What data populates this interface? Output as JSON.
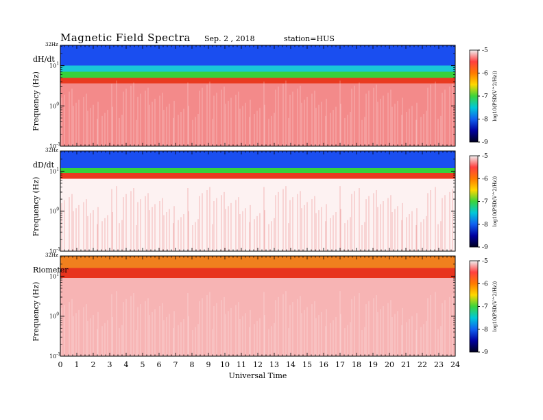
{
  "header": {
    "title": "Magnetic  Field  Spectra",
    "date": "Sep. 2  , 2018",
    "station": "station=HUS"
  },
  "chart_data": [
    {
      "type": "heatmap",
      "panel_label": "dH/dt",
      "ylabel": "Frequency  (Hz)",
      "yscale": "log",
      "ylim": [
        0.1,
        32
      ],
      "y_top_label": "32Hz",
      "yticks": [
        "10",
        "10",
        "10"
      ],
      "yticks_exp": [
        "1",
        "0",
        "-1"
      ],
      "xlim": [
        0,
        24
      ],
      "band_profile": [
        {
          "from_hz": 32,
          "to_hz": 10,
          "color": "#1a4ef0"
        },
        {
          "from_hz": 10,
          "to_hz": 7,
          "color": "#19c8d8"
        },
        {
          "from_hz": 7,
          "to_hz": 5,
          "color": "#36d23c"
        },
        {
          "from_hz": 5,
          "to_hz": 3.6,
          "color": "#e93a20"
        },
        {
          "from_hz": 3.6,
          "to_hz": 0.1,
          "color": "#f38a8a"
        }
      ]
    },
    {
      "type": "heatmap",
      "panel_label": "dD/dt",
      "ylabel": "Frequency  (Hz)",
      "yscale": "log",
      "ylim": [
        0.1,
        32
      ],
      "y_top_label": "32Hz",
      "yticks": [
        "10",
        "10",
        "10"
      ],
      "yticks_exp": [
        "1",
        "0",
        "-1"
      ],
      "xlim": [
        0,
        24
      ],
      "band_profile": [
        {
          "from_hz": 32,
          "to_hz": 12,
          "color": "#1a4ef0"
        },
        {
          "from_hz": 12,
          "to_hz": 9,
          "color": "#36d23c"
        },
        {
          "from_hz": 9,
          "to_hz": 6.5,
          "color": "#e93a20"
        },
        {
          "from_hz": 6.5,
          "to_hz": 0.1,
          "color": "#fdf2f2"
        }
      ]
    },
    {
      "type": "heatmap",
      "panel_label": "Riometer",
      "ylabel": "Frequency  (Hz)",
      "yscale": "log",
      "ylim": [
        0.1,
        32
      ],
      "y_top_label": "32Hz",
      "yticks": [
        "10",
        "10",
        "10"
      ],
      "yticks_exp": [
        "1",
        "0",
        "-1"
      ],
      "xlim": [
        0,
        24
      ],
      "band_profile": [
        {
          "from_hz": 32,
          "to_hz": 16,
          "color": "#f0801e"
        },
        {
          "from_hz": 16,
          "to_hz": 9,
          "color": "#e8341e"
        },
        {
          "from_hz": 9,
          "to_hz": 0.1,
          "color": "#f7b4b4"
        }
      ]
    }
  ],
  "xaxis": {
    "label": "Universal Time",
    "ticks": [
      "0",
      "1",
      "2",
      "3",
      "4",
      "5",
      "6",
      "7",
      "8",
      "9",
      "10",
      "11",
      "12",
      "13",
      "14",
      "15",
      "16",
      "17",
      "18",
      "19",
      "20",
      "21",
      "22",
      "23",
      "24"
    ]
  },
  "colorbar": {
    "label": "log10(PSD(V^2/Hz))",
    "range": [
      -9,
      -5
    ],
    "ticks": [
      "-5",
      "-6",
      "-7",
      "-8",
      "-9"
    ],
    "colors": [
      "#f0f0f0",
      "#ff4040",
      "#ff7a00",
      "#ffd800",
      "#3bd43b",
      "#00c8d8",
      "#1060f0",
      "#0000a0",
      "#000020"
    ]
  }
}
